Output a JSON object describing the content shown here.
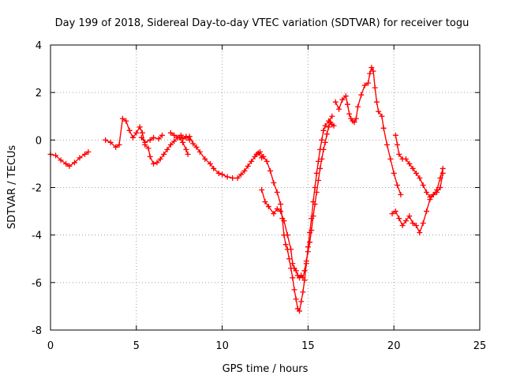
{
  "chart_data": {
    "type": "scatter",
    "title": "Day 199 of 2018, Sidereal Day-to-day VTEC variation (SDTVAR) for receiver togu",
    "xlabel": "GPS time / hours",
    "ylabel": "SDTVAR / TECUs",
    "xlim": [
      0,
      25
    ],
    "ylim": [
      -8,
      4
    ],
    "xticks": [
      0,
      5,
      10,
      15,
      20,
      25
    ],
    "yticks": [
      -8,
      -6,
      -4,
      -2,
      0,
      2,
      4
    ],
    "grid": true,
    "marker": "+",
    "series_color": "#ff0000",
    "series": [
      {
        "name": "SDTVAR",
        "segments": [
          [
            [
              0.0,
              -0.6
            ],
            [
              0.3,
              -0.65
            ],
            [
              0.6,
              -0.85
            ],
            [
              0.9,
              -1.0
            ],
            [
              1.1,
              -1.1
            ],
            [
              1.4,
              -0.95
            ],
            [
              1.7,
              -0.75
            ],
            [
              2.0,
              -0.6
            ],
            [
              2.2,
              -0.5
            ]
          ],
          [
            [
              3.2,
              0.0
            ],
            [
              3.5,
              -0.1
            ],
            [
              3.8,
              -0.3
            ],
            [
              4.0,
              -0.2
            ],
            [
              4.2,
              0.9
            ],
            [
              4.4,
              0.8
            ],
            [
              4.6,
              0.4
            ],
            [
              4.8,
              0.1
            ],
            [
              5.0,
              0.3
            ],
            [
              5.2,
              0.55
            ],
            [
              5.35,
              0.3
            ],
            [
              5.5,
              -0.2
            ],
            [
              5.7,
              -0.35
            ],
            [
              5.8,
              -0.7
            ],
            [
              6.0,
              -1.0
            ],
            [
              6.2,
              -0.95
            ],
            [
              6.4,
              -0.8
            ],
            [
              6.6,
              -0.6
            ],
            [
              6.8,
              -0.4
            ],
            [
              7.0,
              -0.2
            ],
            [
              7.2,
              -0.05
            ],
            [
              7.4,
              0.1
            ],
            [
              7.6,
              0.2
            ],
            [
              7.7,
              0.05
            ],
            [
              7.9,
              0.15
            ],
            [
              8.1,
              0.0
            ]
          ],
          [
            [
              5.3,
              0.1
            ],
            [
              5.5,
              -0.1
            ],
            [
              5.8,
              0.0
            ],
            [
              6.0,
              0.1
            ],
            [
              6.3,
              0.05
            ],
            [
              6.5,
              0.2
            ]
          ],
          [
            [
              7.0,
              0.3
            ],
            [
              7.2,
              0.2
            ],
            [
              7.5,
              0.1
            ],
            [
              7.7,
              -0.1
            ],
            [
              7.9,
              -0.4
            ],
            [
              8.0,
              -0.6
            ]
          ],
          [
            [
              7.9,
              0.1
            ],
            [
              8.1,
              0.15
            ],
            [
              8.3,
              -0.15
            ],
            [
              8.5,
              -0.3
            ],
            [
              8.7,
              -0.5
            ],
            [
              9.0,
              -0.8
            ],
            [
              9.3,
              -1.0
            ],
            [
              9.5,
              -1.2
            ],
            [
              9.8,
              -1.4
            ],
            [
              10.0,
              -1.45
            ],
            [
              10.3,
              -1.55
            ],
            [
              10.6,
              -1.6
            ],
            [
              10.9,
              -1.6
            ],
            [
              11.1,
              -1.45
            ],
            [
              11.3,
              -1.3
            ],
            [
              11.5,
              -1.1
            ],
            [
              11.7,
              -0.9
            ],
            [
              11.9,
              -0.7
            ],
            [
              12.1,
              -0.55
            ],
            [
              12.3,
              -0.75
            ]
          ],
          [
            [
              12.3,
              -2.1
            ],
            [
              12.5,
              -2.6
            ],
            [
              12.7,
              -2.8
            ],
            [
              13.0,
              -3.1
            ],
            [
              13.2,
              -2.9
            ],
            [
              13.4,
              -3.0
            ],
            [
              13.6,
              -3.4
            ],
            [
              13.8,
              -4.0
            ],
            [
              14.0,
              -4.6
            ],
            [
              14.1,
              -5.2
            ],
            [
              14.2,
              -5.4
            ],
            [
              14.3,
              -5.5
            ],
            [
              14.4,
              -5.7
            ],
            [
              14.5,
              -5.8
            ],
            [
              14.6,
              -5.7
            ],
            [
              14.7,
              -5.8
            ],
            [
              14.8,
              -5.5
            ],
            [
              14.9,
              -5.1
            ],
            [
              15.0,
              -4.7
            ],
            [
              15.1,
              -4.3
            ],
            [
              15.2,
              -3.8
            ],
            [
              15.3,
              -3.2
            ],
            [
              15.4,
              -2.7
            ],
            [
              15.5,
              -2.2
            ],
            [
              15.6,
              -1.7
            ],
            [
              15.7,
              -1.2
            ],
            [
              15.8,
              -0.8
            ],
            [
              15.9,
              -0.4
            ],
            [
              16.0,
              -0.1
            ],
            [
              16.1,
              0.25
            ],
            [
              16.2,
              0.55
            ],
            [
              16.3,
              0.75
            ],
            [
              16.4,
              0.65
            ],
            [
              16.5,
              0.6
            ]
          ],
          [
            [
              12.0,
              -0.6
            ],
            [
              12.2,
              -0.5
            ],
            [
              12.4,
              -0.7
            ],
            [
              12.6,
              -0.9
            ],
            [
              12.8,
              -1.3
            ],
            [
              13.0,
              -1.8
            ],
            [
              13.2,
              -2.2
            ],
            [
              13.4,
              -2.7
            ],
            [
              13.5,
              -3.3
            ],
            [
              13.6,
              -4.0
            ],
            [
              13.7,
              -4.4
            ],
            [
              13.8,
              -4.6
            ],
            [
              13.9,
              -5.0
            ],
            [
              14.0,
              -5.4
            ],
            [
              14.1,
              -5.8
            ],
            [
              14.2,
              -6.3
            ],
            [
              14.3,
              -6.7
            ],
            [
              14.4,
              -7.1
            ],
            [
              14.5,
              -7.2
            ],
            [
              14.6,
              -6.8
            ],
            [
              14.7,
              -6.4
            ],
            [
              14.8,
              -5.9
            ],
            [
              14.9,
              -5.2
            ],
            [
              15.0,
              -4.5
            ],
            [
              15.1,
              -3.9
            ],
            [
              15.2,
              -3.3
            ],
            [
              15.3,
              -2.6
            ],
            [
              15.4,
              -2.0
            ],
            [
              15.5,
              -1.4
            ],
            [
              15.6,
              -0.9
            ],
            [
              15.7,
              -0.4
            ],
            [
              15.8,
              0.0
            ],
            [
              15.9,
              0.4
            ],
            [
              16.0,
              0.6
            ],
            [
              16.2,
              0.8
            ],
            [
              16.4,
              1.0
            ]
          ],
          [
            [
              16.6,
              1.6
            ],
            [
              16.8,
              1.3
            ],
            [
              17.0,
              1.7
            ],
            [
              17.2,
              1.85
            ],
            [
              17.3,
              1.5
            ],
            [
              17.4,
              1.1
            ],
            [
              17.5,
              0.9
            ],
            [
              17.6,
              0.8
            ],
            [
              17.7,
              0.75
            ],
            [
              17.8,
              0.9
            ],
            [
              17.9,
              1.4
            ],
            [
              18.1,
              1.9
            ],
            [
              18.3,
              2.3
            ],
            [
              18.5,
              2.4
            ],
            [
              18.6,
              2.8
            ],
            [
              18.7,
              3.05
            ],
            [
              18.8,
              2.9
            ],
            [
              18.9,
              2.2
            ],
            [
              19.0,
              1.6
            ],
            [
              19.1,
              1.2
            ],
            [
              19.3,
              1.0
            ],
            [
              19.4,
              0.5
            ],
            [
              19.6,
              -0.2
            ],
            [
              19.8,
              -0.8
            ],
            [
              20.0,
              -1.4
            ],
            [
              20.2,
              -1.9
            ],
            [
              20.4,
              -2.3
            ]
          ],
          [
            [
              20.1,
              0.2
            ],
            [
              20.2,
              -0.2
            ],
            [
              20.3,
              -0.6
            ],
            [
              20.5,
              -0.8
            ],
            [
              20.7,
              -0.8
            ],
            [
              20.9,
              -1.0
            ],
            [
              21.1,
              -1.2
            ],
            [
              21.3,
              -1.4
            ],
            [
              21.5,
              -1.6
            ],
            [
              21.7,
              -1.9
            ],
            [
              21.9,
              -2.2
            ],
            [
              22.1,
              -2.4
            ],
            [
              22.3,
              -2.3
            ],
            [
              22.5,
              -2.2
            ],
            [
              22.7,
              -2.0
            ],
            [
              22.85,
              -1.4
            ]
          ],
          [
            [
              19.9,
              -3.1
            ],
            [
              20.1,
              -3.0
            ],
            [
              20.3,
              -3.3
            ],
            [
              20.5,
              -3.6
            ],
            [
              20.7,
              -3.4
            ],
            [
              20.9,
              -3.2
            ],
            [
              21.1,
              -3.5
            ],
            [
              21.3,
              -3.6
            ],
            [
              21.5,
              -3.9
            ],
            [
              21.7,
              -3.5
            ],
            [
              21.9,
              -3.0
            ],
            [
              22.1,
              -2.5
            ],
            [
              22.3,
              -2.3
            ],
            [
              22.5,
              -2.1
            ],
            [
              22.7,
              -1.6
            ],
            [
              22.85,
              -1.2
            ]
          ]
        ]
      }
    ]
  }
}
